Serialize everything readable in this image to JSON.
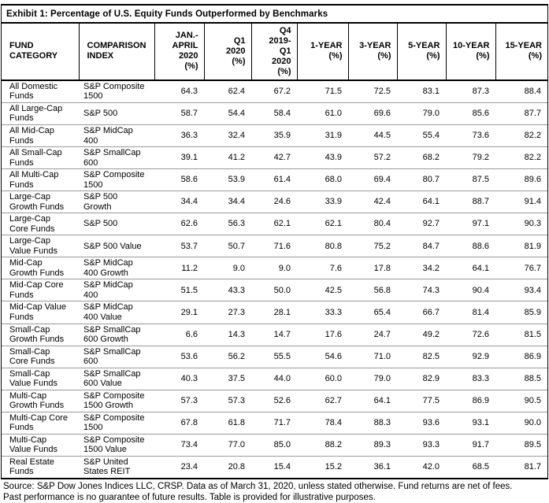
{
  "title": "Exhibit 1: Percentage of U.S. Equity Funds Outperformed by Benchmarks",
  "table": {
    "columns": [
      {
        "label": "FUND\nCATEGORY",
        "align": "left"
      },
      {
        "label": "COMPARISON\nINDEX",
        "align": "left"
      },
      {
        "label": "JAN.-\nAPRIL\n2020\n(%)",
        "align": "right"
      },
      {
        "label": "Q1\n2020\n(%)",
        "align": "right"
      },
      {
        "label": "Q4 2019-\nQ1\n2020\n(%)",
        "align": "right"
      },
      {
        "label": "1-YEAR\n(%)",
        "align": "right"
      },
      {
        "label": "3-YEAR\n(%)",
        "align": "right"
      },
      {
        "label": "5-YEAR\n(%)",
        "align": "right"
      },
      {
        "label": "10-YEAR\n(%)",
        "align": "right"
      },
      {
        "label": "15-YEAR\n(%)",
        "align": "right"
      }
    ],
    "rows": [
      {
        "category": "All Domestic\nFunds",
        "index": "S&P Composite\n1500",
        "values": [
          "64.3",
          "62.4",
          "67.2",
          "71.5",
          "72.5",
          "83.1",
          "87.3",
          "88.4"
        ]
      },
      {
        "category": "All Large-Cap\nFunds",
        "index": "S&P 500",
        "values": [
          "58.7",
          "54.4",
          "58.4",
          "61.0",
          "69.6",
          "79.0",
          "85.6",
          "87.7"
        ]
      },
      {
        "category": "All Mid-Cap\nFunds",
        "index": "S&P MidCap\n400",
        "values": [
          "36.3",
          "32.4",
          "35.9",
          "31.9",
          "44.5",
          "55.4",
          "73.6",
          "82.2"
        ]
      },
      {
        "category": "All Small-Cap\nFunds",
        "index": "S&P SmallCap\n600",
        "values": [
          "39.1",
          "41.2",
          "42.7",
          "43.9",
          "57.2",
          "68.2",
          "79.2",
          "82.2"
        ]
      },
      {
        "category": "All Multi-Cap\nFunds",
        "index": "S&P Composite\n1500",
        "values": [
          "58.6",
          "53.9",
          "61.4",
          "68.0",
          "69.4",
          "80.7",
          "87.5",
          "89.6"
        ]
      },
      {
        "category": "Large-Cap\nGrowth Funds",
        "index": "S&P 500\nGrowth",
        "values": [
          "34.4",
          "34.4",
          "24.6",
          "33.9",
          "42.4",
          "64.1",
          "88.7",
          "91.4"
        ]
      },
      {
        "category": "Large-Cap\nCore Funds",
        "index": "S&P 500",
        "values": [
          "62.6",
          "56.3",
          "62.1",
          "62.1",
          "80.4",
          "92.7",
          "97.1",
          "90.3"
        ]
      },
      {
        "category": "Large-Cap\nValue Funds",
        "index": "S&P 500 Value",
        "values": [
          "53.7",
          "50.7",
          "71.6",
          "80.8",
          "75.2",
          "84.7",
          "88.6",
          "81.9"
        ]
      },
      {
        "category": "Mid-Cap\nGrowth Funds",
        "index": "S&P MidCap\n400 Growth",
        "values": [
          "11.2",
          "9.0",
          "9.0",
          "7.6",
          "17.8",
          "34.2",
          "64.1",
          "76.7"
        ]
      },
      {
        "category": "Mid-Cap Core\nFunds",
        "index": "S&P MidCap\n400",
        "values": [
          "51.5",
          "43.3",
          "50.0",
          "42.5",
          "56.8",
          "74.3",
          "90.4",
          "93.4"
        ]
      },
      {
        "category": "Mid-Cap Value\nFunds",
        "index": "S&P MidCap\n400 Value",
        "values": [
          "29.1",
          "27.3",
          "28.1",
          "33.3",
          "65.4",
          "66.7",
          "81.4",
          "85.9"
        ]
      },
      {
        "category": "Small-Cap\nGrowth Funds",
        "index": "S&P SmallCap\n600 Growth",
        "values": [
          "6.6",
          "14.3",
          "14.7",
          "17.6",
          "24.7",
          "49.2",
          "72.6",
          "81.5"
        ]
      },
      {
        "category": "Small-Cap\nCore Funds",
        "index": "S&P SmallCap\n600",
        "values": [
          "53.6",
          "56.2",
          "55.5",
          "54.6",
          "71.0",
          "82.5",
          "92.9",
          "86.9"
        ]
      },
      {
        "category": "Small-Cap\nValue Funds",
        "index": "S&P SmallCap\n600 Value",
        "values": [
          "40.3",
          "37.5",
          "44.0",
          "60.0",
          "79.0",
          "82.9",
          "83.3",
          "88.5"
        ]
      },
      {
        "category": "Multi-Cap\nGrowth Funds",
        "index": "S&P Composite\n1500 Growth",
        "values": [
          "57.3",
          "57.3",
          "52.6",
          "62.7",
          "64.1",
          "77.5",
          "86.9",
          "90.5"
        ]
      },
      {
        "category": "Multi-Cap Core\nFunds",
        "index": "S&P Composite\n1500",
        "values": [
          "67.8",
          "61.8",
          "71.7",
          "78.4",
          "88.3",
          "93.6",
          "93.1",
          "90.0"
        ]
      },
      {
        "category": "Multi-Cap\nValue Funds",
        "index": "S&P Composite\n1500 Value",
        "values": [
          "73.4",
          "77.0",
          "85.0",
          "88.2",
          "89.3",
          "93.3",
          "91.7",
          "89.5"
        ]
      },
      {
        "category": "Real Estate\nFunds",
        "index": "S&P United\nStates REIT",
        "values": [
          "23.4",
          "20.8",
          "15.4",
          "15.2",
          "36.1",
          "42.0",
          "68.5",
          "81.7"
        ]
      }
    ]
  },
  "footer": {
    "line1": "Source: S&P Dow Jones Indices LLC, CRSP. Data as of March 31, 2020, unless stated otherwise. Fund returns are net of fees.",
    "line2": "Past performance is no guarantee of future results. Table is provided for illustrative purposes."
  }
}
